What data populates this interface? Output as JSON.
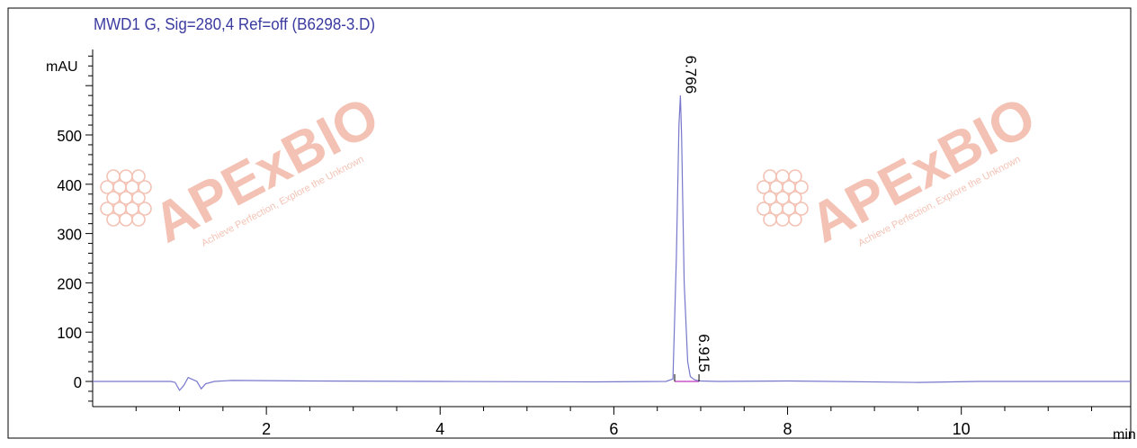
{
  "chart_data": {
    "type": "line",
    "title": "MWD1 G, Sig=280,4 Ref=off (B6298-3.D)",
    "xlabel": "min",
    "ylabel": "mAU",
    "xlim": [
      0,
      11.95
    ],
    "ylim": [
      -45,
      680
    ],
    "x_ticks": [
      2,
      4,
      6,
      8,
      10
    ],
    "y_ticks": [
      0,
      100,
      200,
      300,
      400,
      500
    ],
    "grid": false,
    "legend": "none",
    "peak_labels": [
      {
        "x": 6.766,
        "y": 580,
        "text": "6.766"
      },
      {
        "x": 6.915,
        "y": 15,
        "text": "6.915"
      }
    ],
    "series": [
      {
        "color": "#7777cc",
        "x": [
          0,
          0.9,
          0.95,
          1.0,
          1.05,
          1.1,
          1.15,
          1.2,
          1.25,
          1.3,
          1.4,
          1.6,
          2.5,
          4.0,
          5.8,
          6.6,
          6.68,
          6.72,
          6.75,
          6.766,
          6.78,
          6.81,
          6.85,
          6.88,
          6.915,
          6.95,
          7.0,
          7.2,
          8.0,
          9.5,
          10.2,
          11.95
        ],
        "y": [
          0,
          0,
          -2,
          -18,
          -8,
          8,
          4,
          0,
          -15,
          -5,
          0,
          2,
          1,
          0,
          -1,
          0,
          5,
          250,
          520,
          580,
          500,
          200,
          40,
          10,
          5,
          2,
          1,
          0,
          1,
          -2,
          0,
          0
        ]
      }
    ],
    "watermarks": [
      {
        "text": "APExBIO",
        "tagline": "Achieve Perfection, Explore the Unknown"
      },
      {
        "text": "APExBIO",
        "tagline": "Achieve Perfection, Explore the Unknown"
      }
    ],
    "colors": {
      "title": "#3a3aa0",
      "axis": "#000000",
      "trace": "#7777cc",
      "peak_marker": "#cc55cc",
      "watermark": "#f2b8a8"
    }
  }
}
